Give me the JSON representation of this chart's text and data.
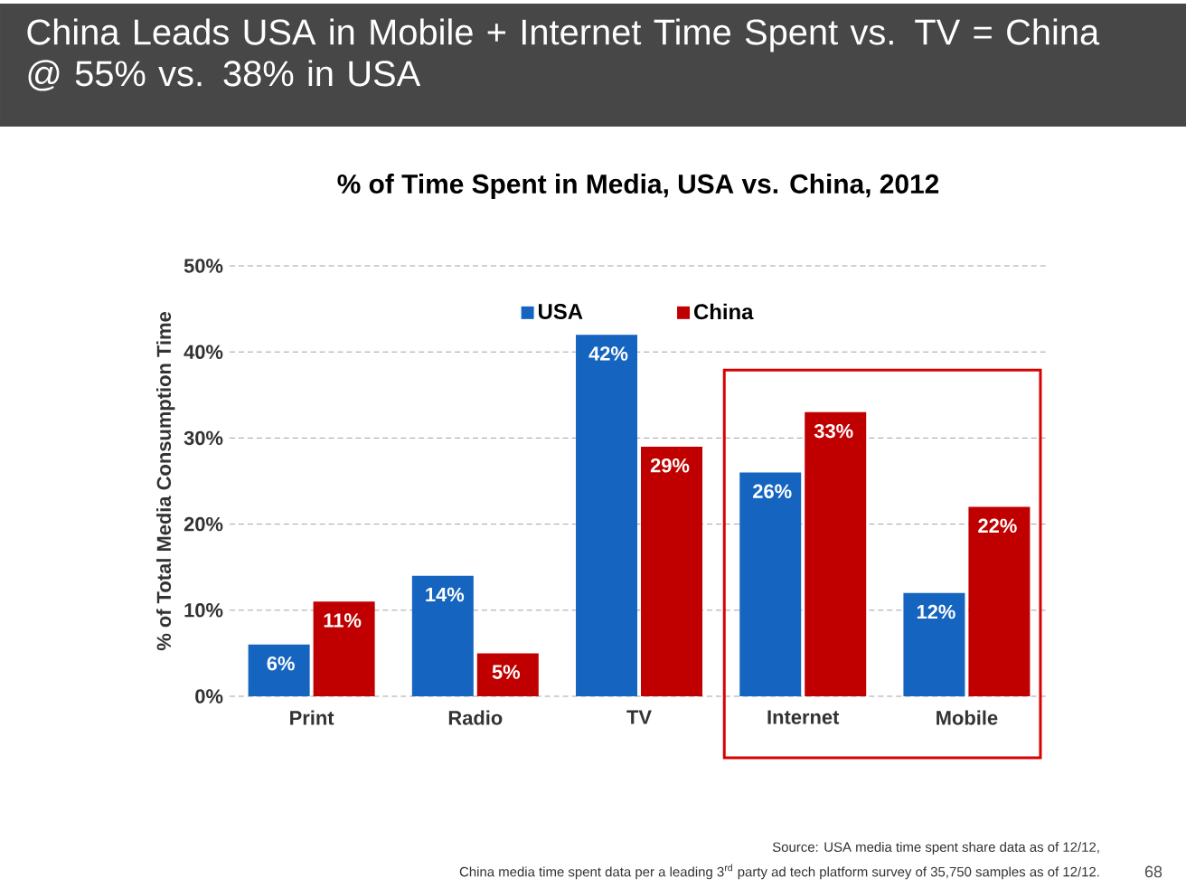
{
  "chart_data": {
    "type": "bar",
    "title": "China Leads USA in Mobile + Internet Time Spent vs. TV = China @ 55% vs. 38% in USA",
    "subtitle": "% of Time Spent in Media, USA vs. China, 2012",
    "ylabel": "% of Total Media Consumption Time",
    "categories": [
      "Print",
      "Radio",
      "TV",
      "Internet",
      "Mobile"
    ],
    "series": [
      {
        "name": "USA",
        "color": "#1565c0",
        "values": [
          6,
          14,
          42,
          26,
          12
        ],
        "value_labels": [
          "6%",
          "14%",
          "42%",
          "26%",
          "12%"
        ]
      },
      {
        "name": "China",
        "color": "#c00000",
        "values": [
          11,
          5,
          29,
          33,
          22
        ],
        "value_labels": [
          "11%",
          "5%",
          "29%",
          "33%",
          "22%"
        ]
      }
    ],
    "ylim": [
      0,
      50
    ],
    "yticks": [
      {
        "value": 0,
        "label": "0%"
      },
      {
        "value": 10,
        "label": "10%"
      },
      {
        "value": 20,
        "label": "20%"
      },
      {
        "value": 30,
        "label": "30%"
      },
      {
        "value": 40,
        "label": "40%"
      },
      {
        "value": 50,
        "label": "50%"
      }
    ],
    "grid": "y",
    "legend": "top",
    "annotations": [
      "Source: USA media time spent share data as of 12/12,",
      "China media time spent data per a leading 3$^{rd}$ party ad tech platform survey of 35,750 samples as of 12/12.",
      "68"
    ]
  }
}
